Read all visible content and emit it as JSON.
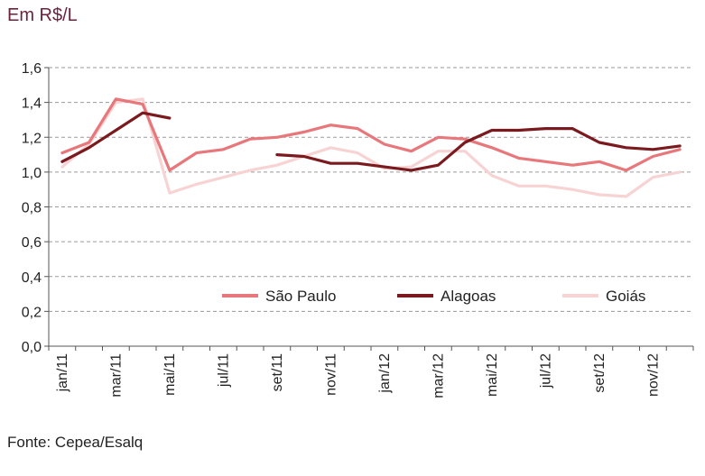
{
  "chart_data": {
    "type": "line",
    "unit_label": "Em R$/L",
    "source": "Fonte: Cepea/Esalq",
    "x": [
      "jan/11",
      "fev/11",
      "mar/11",
      "abr/11",
      "mai/11",
      "jun/11",
      "jul/11",
      "ago/11",
      "set/11",
      "out/11",
      "nov/11",
      "dez/11",
      "jan/12",
      "fev/12",
      "mar/12",
      "abr/12",
      "mai/12",
      "jun/12",
      "jul/12",
      "ago/12",
      "set/12",
      "out/12",
      "nov/12",
      "dez/12"
    ],
    "x_tick_labels": [
      "jan/11",
      "mar/11",
      "mai/11",
      "jul/11",
      "set/11",
      "nov/11",
      "jan/12",
      "mar/12",
      "mai/12",
      "jul/12",
      "set/12",
      "nov/12"
    ],
    "y_ticks": [
      "0,0",
      "0,2",
      "0,4",
      "0,6",
      "0,8",
      "1,0",
      "1,2",
      "1,4",
      "1,6"
    ],
    "ylim": [
      0,
      1.6
    ],
    "grid": "horizontal dashed",
    "legend_position": "inside-bottom",
    "series": [
      {
        "name": "São Paulo",
        "color": "#e8777b",
        "values": [
          1.11,
          1.17,
          1.42,
          1.39,
          1.01,
          1.11,
          1.13,
          1.19,
          1.2,
          1.23,
          1.27,
          1.25,
          1.16,
          1.12,
          1.2,
          1.19,
          1.14,
          1.08,
          1.06,
          1.04,
          1.06,
          1.01,
          1.09,
          1.13
        ]
      },
      {
        "name": "Alagoas",
        "color": "#7b1a1e",
        "values": [
          1.06,
          1.14,
          1.24,
          1.34,
          1.31,
          null,
          null,
          null,
          1.1,
          1.09,
          1.05,
          1.05,
          1.03,
          1.01,
          1.04,
          1.17,
          1.24,
          1.24,
          1.25,
          1.25,
          1.17,
          1.14,
          1.13,
          1.15
        ]
      },
      {
        "name": "Goiás",
        "color": "#f8d3d4",
        "values": [
          1.03,
          1.16,
          1.4,
          1.42,
          0.88,
          0.93,
          0.97,
          1.01,
          1.04,
          1.09,
          1.14,
          1.11,
          1.02,
          1.03,
          1.12,
          1.12,
          0.98,
          0.92,
          0.92,
          0.9,
          0.87,
          0.86,
          0.97,
          1.0
        ]
      }
    ]
  }
}
